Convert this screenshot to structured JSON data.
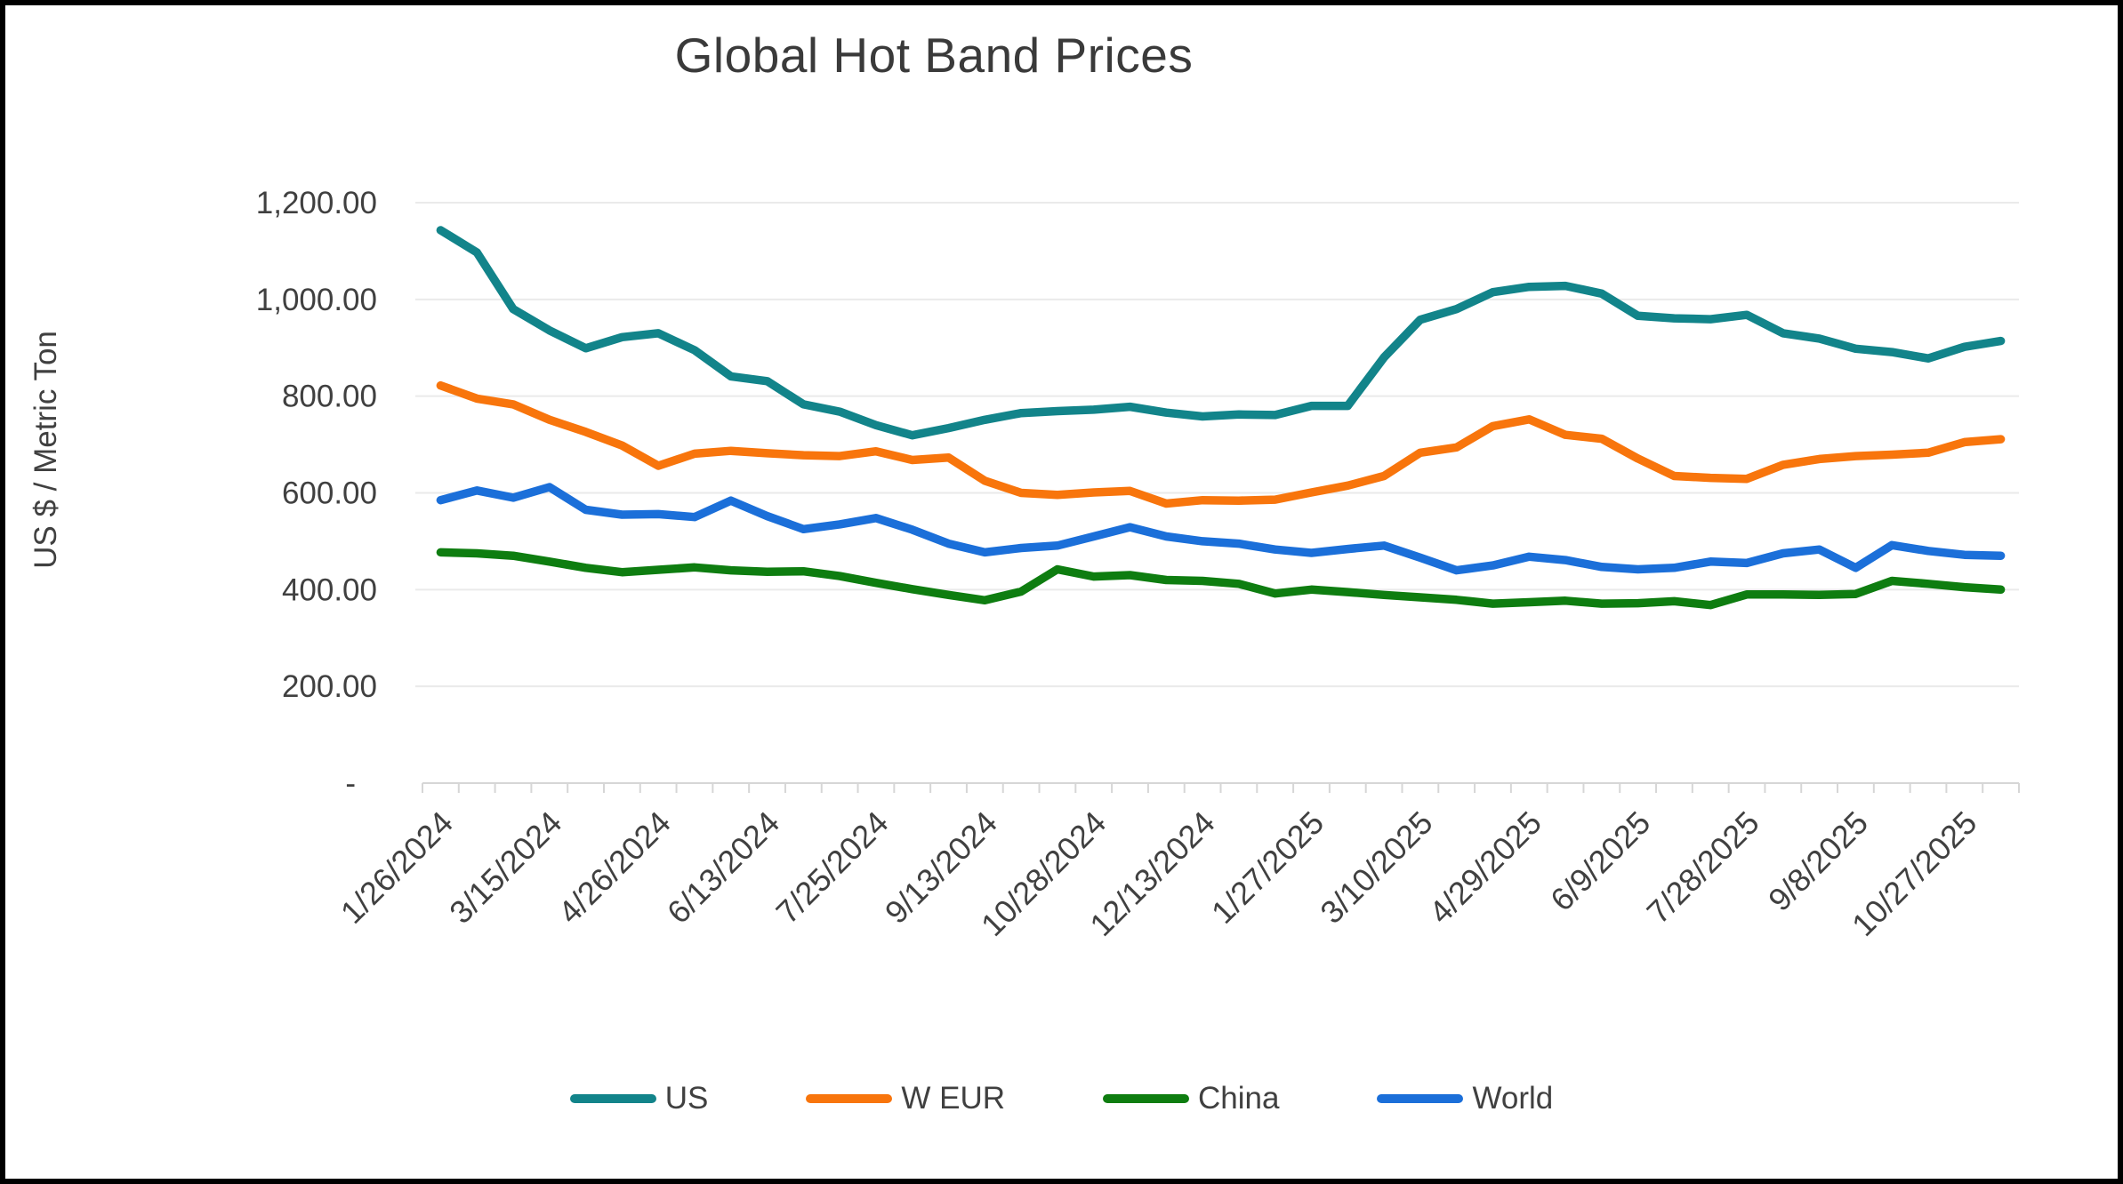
{
  "chart_data": {
    "type": "line",
    "title": "Global Hot Band Prices",
    "ylabel": "US $ / Metric Ton",
    "xlabel": "",
    "ylim": [
      0,
      1200
    ],
    "grid": "horizontal-only",
    "legend_position": "bottom",
    "n_points": 44,
    "x_label_interval": 3,
    "y_ticks": [
      {
        "value": 0,
        "label": "-"
      },
      {
        "value": 200,
        "label": "200.00"
      },
      {
        "value": 400,
        "label": "400.00"
      },
      {
        "value": 600,
        "label": "600.00"
      },
      {
        "value": 800,
        "label": "800.00"
      },
      {
        "value": 1000,
        "label": "1,000.00"
      },
      {
        "value": 1200,
        "label": "1,200.00"
      }
    ],
    "x_tick_labels": [
      "1/26/2024",
      "3/15/2024",
      "4/26/2024",
      "6/13/2024",
      "7/25/2024",
      "9/13/2024",
      "10/28/2024",
      "12/13/2024",
      "1/27/2025",
      "3/10/2025",
      "4/29/2025",
      "6/9/2025",
      "7/28/2025",
      "9/8/2025",
      "10/27/2025"
    ],
    "series": [
      {
        "name": "US",
        "color": "#12848A",
        "values": [
          1143,
          1097,
          980,
          936,
          899,
          922,
          930,
          895,
          841,
          831,
          783,
          768,
          740,
          719,
          734,
          751,
          765,
          769,
          772,
          778,
          766,
          758,
          762,
          761,
          780,
          780,
          880,
          958,
          980,
          1015,
          1026,
          1028,
          1012,
          966,
          961,
          959,
          968,
          930,
          919,
          898,
          891,
          878,
          902,
          914
        ]
      },
      {
        "name": "W EUR",
        "color": "#F8750C",
        "values": [
          822,
          795,
          783,
          751,
          726,
          698,
          656,
          681,
          687,
          682,
          678,
          676,
          686,
          668,
          673,
          625,
          600,
          596,
          601,
          604,
          578,
          585,
          584,
          586,
          601,
          615,
          635,
          683,
          694,
          738,
          752,
          720,
          712,
          671,
          635,
          631,
          629,
          658,
          670,
          676,
          679,
          683,
          705,
          711
        ]
      },
      {
        "name": "China",
        "color": "#0E7D10",
        "values": [
          477,
          475,
          470,
          458,
          445,
          436,
          441,
          446,
          440,
          437,
          438,
          428,
          414,
          401,
          389,
          378,
          396,
          442,
          427,
          430,
          420,
          418,
          412,
          392,
          400,
          395,
          389,
          384,
          379,
          371,
          374,
          377,
          371,
          372,
          376,
          368,
          390,
          390,
          389,
          391,
          418,
          412,
          405,
          400
        ]
      },
      {
        "name": "World",
        "color": "#1B6FD9",
        "values": [
          585,
          605,
          590,
          612,
          565,
          555,
          556,
          550,
          584,
          552,
          525,
          535,
          548,
          524,
          495,
          477,
          486,
          491,
          510,
          529,
          510,
          500,
          495,
          483,
          476,
          484,
          491,
          466,
          440,
          450,
          468,
          461,
          447,
          442,
          445,
          458,
          455,
          475,
          483,
          445,
          492,
          480,
          472,
          470
        ]
      }
    ],
    "style": {
      "gridline_color": "#EAEAEA",
      "axis_color": "#D6D6D6",
      "tick_label_color": "#404040",
      "title_color": "#3A3A3A",
      "line_width": 9.5
    }
  }
}
